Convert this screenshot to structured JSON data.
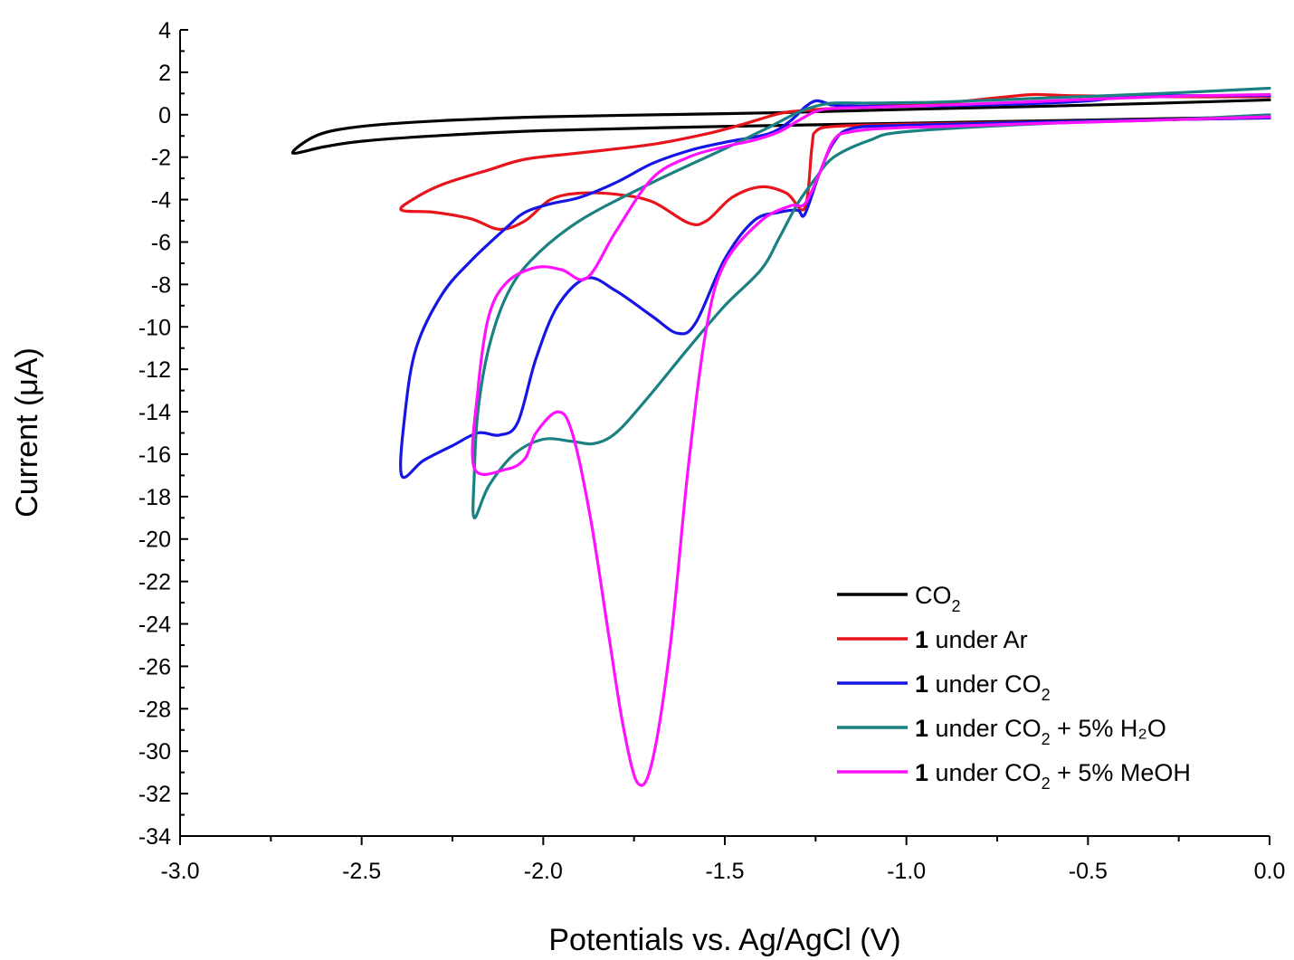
{
  "chart_data": {
    "type": "line",
    "xlabel": "Potentials vs. Ag/AgCl (V)",
    "ylabel": "Current (μA)",
    "xlim": [
      -3.0,
      0.0
    ],
    "ylim": [
      -34,
      4
    ],
    "x_ticks": [
      -3.0,
      -2.5,
      -2.0,
      -1.5,
      -1.0,
      -0.5,
      0.0
    ],
    "x_tick_labels": [
      "-3.0",
      "-2.5",
      "-2.0",
      "-1.5",
      "-1.0",
      "-0.5",
      "0.0"
    ],
    "y_ticks": [
      4,
      2,
      0,
      -2,
      -4,
      -6,
      -8,
      -10,
      -12,
      -14,
      -16,
      -18,
      -20,
      -22,
      -24,
      -26,
      -28,
      -30,
      -32,
      -34
    ],
    "y_tick_labels": [
      "4",
      "2",
      "0",
      "-2",
      "-4",
      "-6",
      "-8",
      "-10",
      "-12",
      "-14",
      "-16",
      "-18",
      "-20",
      "-22",
      "-24",
      "-26",
      "-28",
      "-30",
      "-32",
      "-34"
    ],
    "grid": false,
    "legend_position": "bottom-right",
    "series": [
      {
        "legend": {
          "bold": "",
          "main": "CO",
          "sub": "2",
          "tail": ""
        },
        "color": "#000000",
        "points": [
          [
            0.0,
            0.7
          ],
          [
            -0.5,
            0.45
          ],
          [
            -1.0,
            0.25
          ],
          [
            -1.3,
            0.12
          ],
          [
            -1.5,
            0.05
          ],
          [
            -2.0,
            -0.1
          ],
          [
            -2.3,
            -0.3
          ],
          [
            -2.5,
            -0.55
          ],
          [
            -2.62,
            -0.95
          ],
          [
            -2.69,
            -1.8
          ],
          [
            -2.6,
            -1.5
          ],
          [
            -2.5,
            -1.25
          ],
          [
            -2.3,
            -1.0
          ],
          [
            -2.0,
            -0.75
          ],
          [
            -1.5,
            -0.55
          ],
          [
            -1.0,
            -0.4
          ],
          [
            -0.5,
            -0.25
          ],
          [
            0.0,
            -0.1
          ]
        ]
      },
      {
        "legend": {
          "bold": "1",
          "main": " under Ar",
          "sub": "",
          "tail": ""
        },
        "color": "#e8141c",
        "points": [
          [
            0.0,
            0.85
          ],
          [
            -0.3,
            0.85
          ],
          [
            -0.55,
            0.9
          ],
          [
            -0.65,
            0.95
          ],
          [
            -0.75,
            0.8
          ],
          [
            -0.9,
            0.55
          ],
          [
            -1.1,
            0.4
          ],
          [
            -1.28,
            0.2
          ],
          [
            -1.35,
            0.05
          ],
          [
            -1.45,
            -0.45
          ],
          [
            -1.55,
            -0.9
          ],
          [
            -1.7,
            -1.4
          ],
          [
            -1.9,
            -1.8
          ],
          [
            -2.05,
            -2.1
          ],
          [
            -2.15,
            -2.6
          ],
          [
            -2.28,
            -3.3
          ],
          [
            -2.36,
            -4.0
          ],
          [
            -2.39,
            -4.5
          ],
          [
            -2.3,
            -4.6
          ],
          [
            -2.2,
            -4.9
          ],
          [
            -2.12,
            -5.4
          ],
          [
            -2.05,
            -5.0
          ],
          [
            -1.98,
            -4.0
          ],
          [
            -1.9,
            -3.7
          ],
          [
            -1.8,
            -3.75
          ],
          [
            -1.7,
            -4.1
          ],
          [
            -1.6,
            -5.1
          ],
          [
            -1.55,
            -5.0
          ],
          [
            -1.48,
            -3.9
          ],
          [
            -1.4,
            -3.4
          ],
          [
            -1.33,
            -3.7
          ],
          [
            -1.28,
            -4.4
          ],
          [
            -1.26,
            -1.5
          ],
          [
            -1.25,
            -0.8
          ],
          [
            -1.2,
            -0.55
          ],
          [
            -1.0,
            -0.45
          ],
          [
            -0.5,
            -0.3
          ],
          [
            0.0,
            -0.15
          ]
        ]
      },
      {
        "legend": {
          "bold": "1",
          "main": " under CO",
          "sub": "2",
          "tail": ""
        },
        "color": "#1515e6",
        "points": [
          [
            0.0,
            0.9
          ],
          [
            -0.3,
            0.9
          ],
          [
            -0.4,
            0.9
          ],
          [
            -0.5,
            0.65
          ],
          [
            -0.8,
            0.45
          ],
          [
            -1.1,
            0.4
          ],
          [
            -1.2,
            0.45
          ],
          [
            -1.22,
            0.55
          ],
          [
            -1.25,
            0.65
          ],
          [
            -1.28,
            0.35
          ],
          [
            -1.32,
            -0.3
          ],
          [
            -1.38,
            -0.9
          ],
          [
            -1.5,
            -1.3
          ],
          [
            -1.6,
            -1.7
          ],
          [
            -1.7,
            -2.3
          ],
          [
            -1.8,
            -3.2
          ],
          [
            -1.9,
            -3.9
          ],
          [
            -1.98,
            -4.2
          ],
          [
            -2.05,
            -4.6
          ],
          [
            -2.1,
            -5.3
          ],
          [
            -2.2,
            -6.9
          ],
          [
            -2.28,
            -8.5
          ],
          [
            -2.35,
            -11.0
          ],
          [
            -2.38,
            -14.0
          ],
          [
            -2.39,
            -17.0
          ],
          [
            -2.33,
            -16.3
          ],
          [
            -2.25,
            -15.6
          ],
          [
            -2.18,
            -15.0
          ],
          [
            -2.12,
            -15.1
          ],
          [
            -2.07,
            -14.5
          ],
          [
            -2.02,
            -11.5
          ],
          [
            -1.96,
            -9.0
          ],
          [
            -1.88,
            -7.7
          ],
          [
            -1.8,
            -8.3
          ],
          [
            -1.7,
            -9.5
          ],
          [
            -1.63,
            -10.3
          ],
          [
            -1.58,
            -9.8
          ],
          [
            -1.5,
            -6.8
          ],
          [
            -1.42,
            -5.0
          ],
          [
            -1.35,
            -4.6
          ],
          [
            -1.3,
            -4.5
          ],
          [
            -1.28,
            -4.7
          ],
          [
            -1.24,
            -2.8
          ],
          [
            -1.2,
            -1.3
          ],
          [
            -1.15,
            -0.65
          ],
          [
            -1.0,
            -0.5
          ],
          [
            -0.5,
            -0.3
          ],
          [
            0.0,
            -0.15
          ]
        ]
      },
      {
        "legend": {
          "bold": "1",
          "main": " under CO",
          "sub": "2",
          "tail": " + 5% H₂O"
        },
        "color": "#1a8080",
        "points": [
          [
            0.0,
            1.25
          ],
          [
            -0.3,
            1.0
          ],
          [
            -0.6,
            0.8
          ],
          [
            -0.9,
            0.6
          ],
          [
            -1.1,
            0.55
          ],
          [
            -1.2,
            0.55
          ],
          [
            -1.25,
            0.4
          ],
          [
            -1.3,
            0.1
          ],
          [
            -1.38,
            -0.6
          ],
          [
            -1.5,
            -1.6
          ],
          [
            -1.7,
            -3.2
          ],
          [
            -1.9,
            -5.0
          ],
          [
            -2.03,
            -6.8
          ],
          [
            -2.1,
            -8.5
          ],
          [
            -2.15,
            -11.0
          ],
          [
            -2.18,
            -14.0
          ],
          [
            -2.19,
            -17.0
          ],
          [
            -2.19,
            -19.0
          ],
          [
            -2.15,
            -17.5
          ],
          [
            -2.08,
            -16.0
          ],
          [
            -2.0,
            -15.3
          ],
          [
            -1.92,
            -15.4
          ],
          [
            -1.86,
            -15.5
          ],
          [
            -1.8,
            -15.0
          ],
          [
            -1.72,
            -13.5
          ],
          [
            -1.6,
            -11.0
          ],
          [
            -1.5,
            -9.0
          ],
          [
            -1.4,
            -7.3
          ],
          [
            -1.35,
            -5.8
          ],
          [
            -1.3,
            -4.2
          ],
          [
            -1.25,
            -3.0
          ],
          [
            -1.2,
            -2.0
          ],
          [
            -1.1,
            -1.2
          ],
          [
            -1.0,
            -0.8
          ],
          [
            -0.6,
            -0.4
          ],
          [
            -0.3,
            -0.25
          ],
          [
            0.0,
            0.0
          ]
        ]
      },
      {
        "legend": {
          "bold": "1",
          "main": " under CO",
          "sub": "2",
          "tail": " + 5% MeOH"
        },
        "color": "#ff10ff",
        "points": [
          [
            0.0,
            0.95
          ],
          [
            -0.3,
            0.85
          ],
          [
            -0.6,
            0.65
          ],
          [
            -0.9,
            0.45
          ],
          [
            -1.1,
            0.35
          ],
          [
            -1.2,
            0.3
          ],
          [
            -1.25,
            0.15
          ],
          [
            -1.3,
            -0.3
          ],
          [
            -1.35,
            -0.8
          ],
          [
            -1.42,
            -1.2
          ],
          [
            -1.5,
            -1.5
          ],
          [
            -1.6,
            -2.0
          ],
          [
            -1.7,
            -3.0
          ],
          [
            -1.8,
            -5.5
          ],
          [
            -1.88,
            -7.7
          ],
          [
            -1.95,
            -7.3
          ],
          [
            -2.02,
            -7.2
          ],
          [
            -2.1,
            -7.9
          ],
          [
            -2.15,
            -9.5
          ],
          [
            -2.18,
            -13.0
          ],
          [
            -2.19,
            -16.65
          ],
          [
            -2.1,
            -16.7
          ],
          [
            -2.05,
            -16.2
          ],
          [
            -2.02,
            -15.0
          ],
          [
            -1.96,
            -14.0
          ],
          [
            -1.92,
            -15.0
          ],
          [
            -1.87,
            -19.0
          ],
          [
            -1.82,
            -24.5
          ],
          [
            -1.78,
            -28.8
          ],
          [
            -1.74,
            -31.5
          ],
          [
            -1.7,
            -30.5
          ],
          [
            -1.65,
            -25.0
          ],
          [
            -1.6,
            -16.5
          ],
          [
            -1.55,
            -10.0
          ],
          [
            -1.5,
            -7.0
          ],
          [
            -1.4,
            -5.0
          ],
          [
            -1.32,
            -4.3
          ],
          [
            -1.28,
            -4.2
          ],
          [
            -1.24,
            -2.8
          ],
          [
            -1.2,
            -1.2
          ],
          [
            -1.15,
            -0.8
          ],
          [
            -1.0,
            -0.6
          ],
          [
            -0.5,
            -0.35
          ],
          [
            0.0,
            -0.1
          ]
        ]
      }
    ]
  }
}
